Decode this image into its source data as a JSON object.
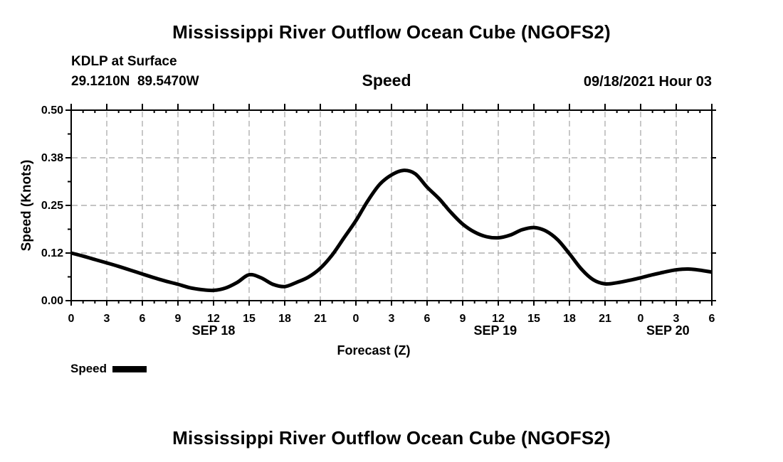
{
  "header": {
    "title": "Mississippi River Outflow Ocean Cube (NGOFS2)",
    "station": "KDLP at Surface",
    "coordinates": "29.1210N  89.5470W",
    "plot_name": "Speed",
    "datetime": "09/18/2021 Hour 03"
  },
  "footer": {
    "title": "Mississippi River Outflow Ocean Cube (NGOFS2)"
  },
  "legend": {
    "label": "Speed",
    "swatch_color": "#000000"
  },
  "colors": {
    "curve": "#000000",
    "grid": "#b0b0b0",
    "axis": "#000000",
    "background": "#ffffff"
  },
  "chart_data": {
    "type": "line",
    "title": "Speed",
    "xlabel": "Forecast (Z)",
    "ylabel": "Speed (Knots)",
    "grid": true,
    "ylim": [
      0,
      0.5
    ],
    "y_ticks": [
      {
        "value": 0.0,
        "label": "0.00"
      },
      {
        "value": 0.125,
        "label": "0.12"
      },
      {
        "value": 0.25,
        "label": "0.25"
      },
      {
        "value": 0.375,
        "label": "0.38"
      },
      {
        "value": 0.5,
        "label": "0.50"
      }
    ],
    "x_start_hour": 0,
    "x_end_hour": 54,
    "x_tick_step_hours": 3,
    "x_minor_tick_step_hours": 1,
    "x_tick_labels": [
      "0",
      "3",
      "6",
      "9",
      "12",
      "15",
      "18",
      "21",
      "0",
      "3",
      "6",
      "9",
      "12",
      "15",
      "18",
      "21",
      "0",
      "3",
      "6"
    ],
    "x_date_labels": [
      {
        "label": "SEP 18",
        "center_hour": 12
      },
      {
        "label": "SEP 19",
        "center_hour": 35.75
      },
      {
        "label": "SEP 20",
        "center_hour": 50.3
      }
    ],
    "series": [
      {
        "name": "Speed",
        "color": "#000000",
        "x_hours_start": 0,
        "x_hours_step": 1,
        "values": [
          0.125,
          0.117,
          0.108,
          0.099,
          0.09,
          0.08,
          0.07,
          0.06,
          0.051,
          0.043,
          0.034,
          0.029,
          0.027,
          0.033,
          0.048,
          0.068,
          0.06,
          0.043,
          0.037,
          0.048,
          0.062,
          0.085,
          0.12,
          0.165,
          0.21,
          0.262,
          0.305,
          0.33,
          0.342,
          0.333,
          0.298,
          0.268,
          0.232,
          0.201,
          0.18,
          0.168,
          0.165,
          0.172,
          0.186,
          0.192,
          0.183,
          0.16,
          0.123,
          0.083,
          0.055,
          0.044,
          0.047,
          0.053,
          0.06,
          0.068,
          0.075,
          0.081,
          0.083,
          0.08,
          0.075
        ]
      }
    ]
  }
}
